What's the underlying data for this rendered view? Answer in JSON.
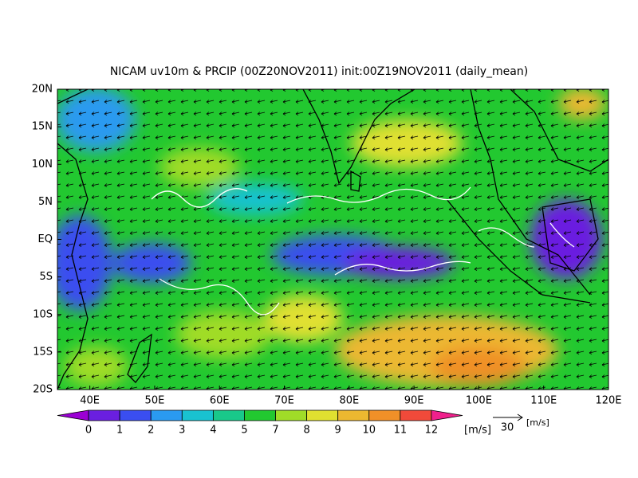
{
  "title": "NICAM uv10m & PRCIP (00Z20NOV2011) init:00Z19NOV2011 (daily_mean)",
  "map": {
    "lat_labels": [
      "20N",
      "15N",
      "10N",
      "5N",
      "EQ",
      "5S",
      "10S",
      "15S",
      "20S"
    ],
    "lon_labels": [
      "40E",
      "50E",
      "60E",
      "70E",
      "80E",
      "90E",
      "100E",
      "110E",
      "120E"
    ]
  },
  "colorbar": {
    "levels": [
      0,
      1,
      2,
      3,
      4,
      5,
      7,
      8,
      9,
      10,
      11,
      12
    ],
    "unit": "[m/s]",
    "colors": [
      "#9b00d4",
      "#6a1fe0",
      "#3a4ef0",
      "#2a9af0",
      "#19c2d0",
      "#19c88a",
      "#22c830",
      "#a0dc28",
      "#e0e030",
      "#ecb830",
      "#f09028",
      "#f04a3a",
      "#f0208c"
    ]
  },
  "vector_reference": {
    "magnitude": 30,
    "unit": "[m/s]"
  }
}
